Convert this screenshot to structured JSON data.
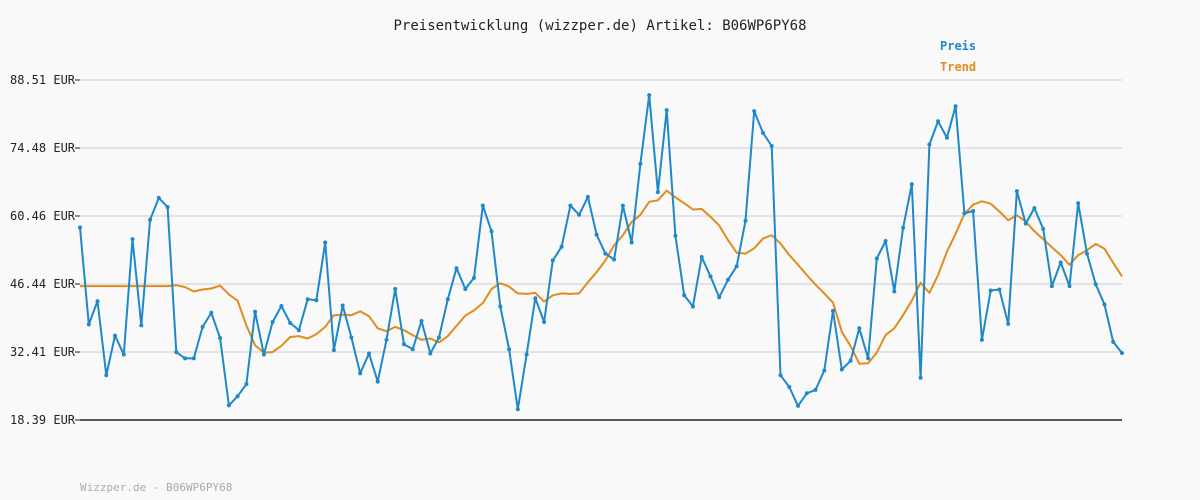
{
  "chart_data": {
    "type": "line",
    "title": "Preisentwicklung (wizzper.de) Artikel: B06WP6PY68",
    "xlabel": "",
    "ylabel": "",
    "ylim": [
      18.39,
      88.51
    ],
    "y_ticks": [
      "18.39 EUR",
      "32.41 EUR",
      "46.44 EUR",
      "60.46 EUR",
      "74.48 EUR",
      "88.51 EUR"
    ],
    "y_tick_values": [
      18.39,
      32.41,
      46.44,
      60.46,
      74.48,
      88.51
    ],
    "grid": true,
    "legend_position": "top-right",
    "series": [
      {
        "name": "Preis",
        "color": "#1e88c8",
        "values": [
          58.1,
          38.1,
          42.9,
          27.6,
          35.8,
          31.9,
          55.7,
          37.9,
          59.7,
          64.2,
          62.3,
          32.4,
          31.1,
          31.1,
          37.6,
          40.5,
          35.3,
          21.4,
          23.3,
          25.8,
          40.7,
          31.9,
          38.6,
          41.9,
          38.4,
          36.9,
          43.3,
          43.1,
          55.0,
          32.8,
          42.0,
          35.4,
          28.0,
          32.1,
          26.3,
          34.9,
          45.4,
          34.0,
          33.0,
          38.8,
          32.1,
          35.4,
          43.3,
          49.7,
          45.4,
          47.7,
          62.6,
          57.3,
          41.8,
          33.0,
          20.6,
          31.9,
          43.5,
          38.6,
          51.3,
          54.1,
          62.6,
          60.7,
          64.4,
          56.6,
          52.7,
          51.5,
          62.6,
          55.0,
          71.2,
          85.4,
          65.4,
          82.3,
          56.4,
          44.1,
          41.8,
          52.0,
          48.0,
          43.7,
          47.3,
          50.1,
          59.5,
          82.1,
          77.6,
          74.9,
          27.6,
          25.2,
          21.3,
          23.9,
          24.6,
          28.6,
          40.9,
          28.8,
          30.6,
          37.3,
          31.1,
          51.7,
          55.3,
          44.9,
          58.0,
          67.0,
          27.1,
          75.2,
          80.0,
          76.6,
          83.1,
          61.0,
          61.5,
          34.9,
          45.1,
          45.3,
          38.2,
          65.6,
          58.9,
          62.1,
          57.8,
          46.0,
          50.9,
          46.0,
          63.1,
          52.7,
          46.4,
          42.2,
          34.5,
          32.2
        ]
      },
      {
        "name": "Trend",
        "color": "#e08c1e",
        "values": [
          46.0,
          46.0,
          46.0,
          46.0,
          46.0,
          46.0,
          46.0,
          46.0,
          46.0,
          46.0,
          46.0,
          46.2,
          45.8,
          44.9,
          45.3,
          45.5,
          46.1,
          44.3,
          43.0,
          37.9,
          33.8,
          32.3,
          32.4,
          33.7,
          35.5,
          35.7,
          35.2,
          36.1,
          37.6,
          40.0,
          40.1,
          40.0,
          40.8,
          39.8,
          37.3,
          36.7,
          37.6,
          36.9,
          35.9,
          34.9,
          35.2,
          34.4,
          35.7,
          37.8,
          39.9,
          41.0,
          42.5,
          45.4,
          46.6,
          45.9,
          44.5,
          44.4,
          44.6,
          42.8,
          44.1,
          44.5,
          44.4,
          44.5,
          46.8,
          48.9,
          51.3,
          54.4,
          56.5,
          59.2,
          60.7,
          63.4,
          63.7,
          65.7,
          64.3,
          63.1,
          61.8,
          61.9,
          60.3,
          58.5,
          55.5,
          52.9,
          52.7,
          53.8,
          55.8,
          56.5,
          54.8,
          52.4,
          50.4,
          48.3,
          46.3,
          44.5,
          42.6,
          36.6,
          33.6,
          30.0,
          30.1,
          32.3,
          35.9,
          37.3,
          40.0,
          43.0,
          46.7,
          44.6,
          48.3,
          53.1,
          56.8,
          60.9,
          62.8,
          63.5,
          63.0,
          61.4,
          59.6,
          60.6,
          59.3,
          57.3,
          55.7,
          54.0,
          52.4,
          50.4,
          52.4,
          53.4,
          54.7,
          53.7,
          50.8,
          48.0
        ]
      }
    ]
  },
  "footer": "Wizzper.de - B06WP6PY68",
  "colors": {
    "grid": "#dcdcdc",
    "axis": "#222222",
    "background": "#f9f9f9"
  }
}
